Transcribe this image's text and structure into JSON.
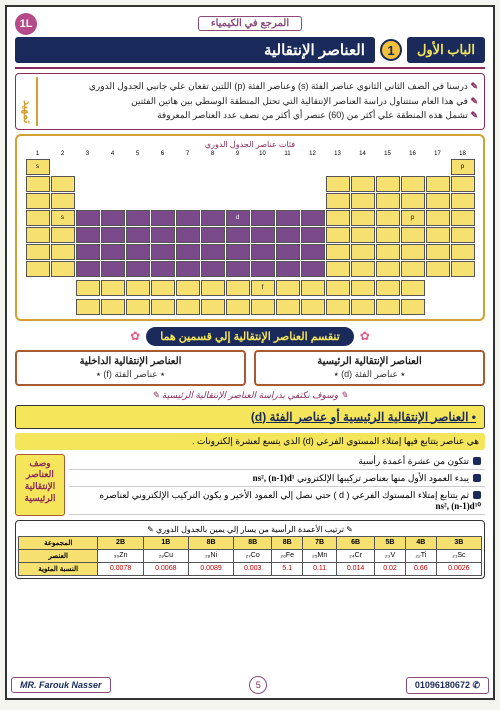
{
  "header": {
    "subject": "المرجع في الكيمياء",
    "badge": "1L"
  },
  "title": {
    "chapter": "الباب الأول",
    "num": "1",
    "topic": "العناصر الإنتقالية"
  },
  "intro": {
    "label": "تمهيد",
    "lines": [
      "درسنا في الصف الثاني الثانوي عناصر الفئة (s) وعناصر الفئة (p) اللتين تقعان علي جانبي الجدول الدوري",
      "في هذا العام ستتناول دراسة العناصر الإنتقالية التي تحتل المنطقة الوسطي بين هاتين الفئتين",
      "تشمل هذه المنطقة علي أكثر من (60) عنصر أي أكثر من نصف عدد العناصر المعروفة"
    ]
  },
  "periodic": {
    "caption": "فئات عناصر الجدول الدوري",
    "groups": [
      "1",
      "2",
      "3",
      "4",
      "5",
      "6",
      "7",
      "8",
      "9",
      "10",
      "11",
      "12",
      "13",
      "14",
      "15",
      "16",
      "17",
      "18"
    ],
    "labels": {
      "s": "فئة s",
      "d": "فئة d",
      "p": "فئة p",
      "f": "فئة f"
    }
  },
  "section1": {
    "banner": "تنقسم العناصر الإنتقالية إلي قسمين هما",
    "right": {
      "h": "العناصر الإنتقالية الرئيسية",
      "p": "٭ عناصر الفئة (d) ٭"
    },
    "left": {
      "h": "العناصر الإنتقالية الداخلية",
      "p": "٭ عناصر الفئة (f) ٭"
    },
    "note": "✎ وسوف نكتفي بدراسة العناصر الإنتقالية الرئيسية ✎"
  },
  "subtitle": "• العناصر الإنتقالية الرئيسية أو عناصر الفئة (d)",
  "highlight": "هي عناصر يتتابع فيها إمتلاء المستوي الفرعي (d) الذي يتسع لعشرة إلكترونات .",
  "desc": {
    "label": "وصف العناصر الإنتقالية الرئيسية",
    "items": [
      {
        "t": "تتكون من عشرة أعمدة رأسية"
      },
      {
        "t": "يبدء العمود الأول منها بعناصر تركيبها الإلكتروني",
        "f": "ns², (n-1)d¹"
      },
      {
        "t": "ثم يتتابع إمتلاء المستوك الفرعي ( d ) حتي نصل إلي العمود الأخير و يكون التركيب الإلكتروني لعناصره",
        "f": "ns², (n-1)d¹⁰"
      }
    ]
  },
  "table": {
    "caption": "✎ ترتيب الأعمدة الرأسية من يسار إلي يمين بالجدول الدوري ✎",
    "headers": [
      "3B",
      "4B",
      "5B",
      "6B",
      "7B",
      "8B",
      "8B",
      "8B",
      "1B",
      "2B"
    ],
    "row_labels": [
      "المجموعة",
      "العنصر",
      "النسبة المئوية"
    ],
    "el": [
      "₂₁Sc",
      "₂₂Ti",
      "₂₃V",
      "₂₄Cr",
      "₂₅Mn",
      "₂₆Fe",
      "₂₇Co",
      "₂₈Ni",
      "₂₉Cu",
      "₃₀Zn"
    ],
    "pct": [
      "0.0026",
      "0.66",
      "0.02",
      "0.014",
      "0.11",
      "5.1",
      "0.003",
      "0.0089",
      "0.0068",
      "0.0078"
    ]
  },
  "footer": {
    "phone": "01096180672",
    "page": "5",
    "author": "MR. Farouk Nasser"
  }
}
